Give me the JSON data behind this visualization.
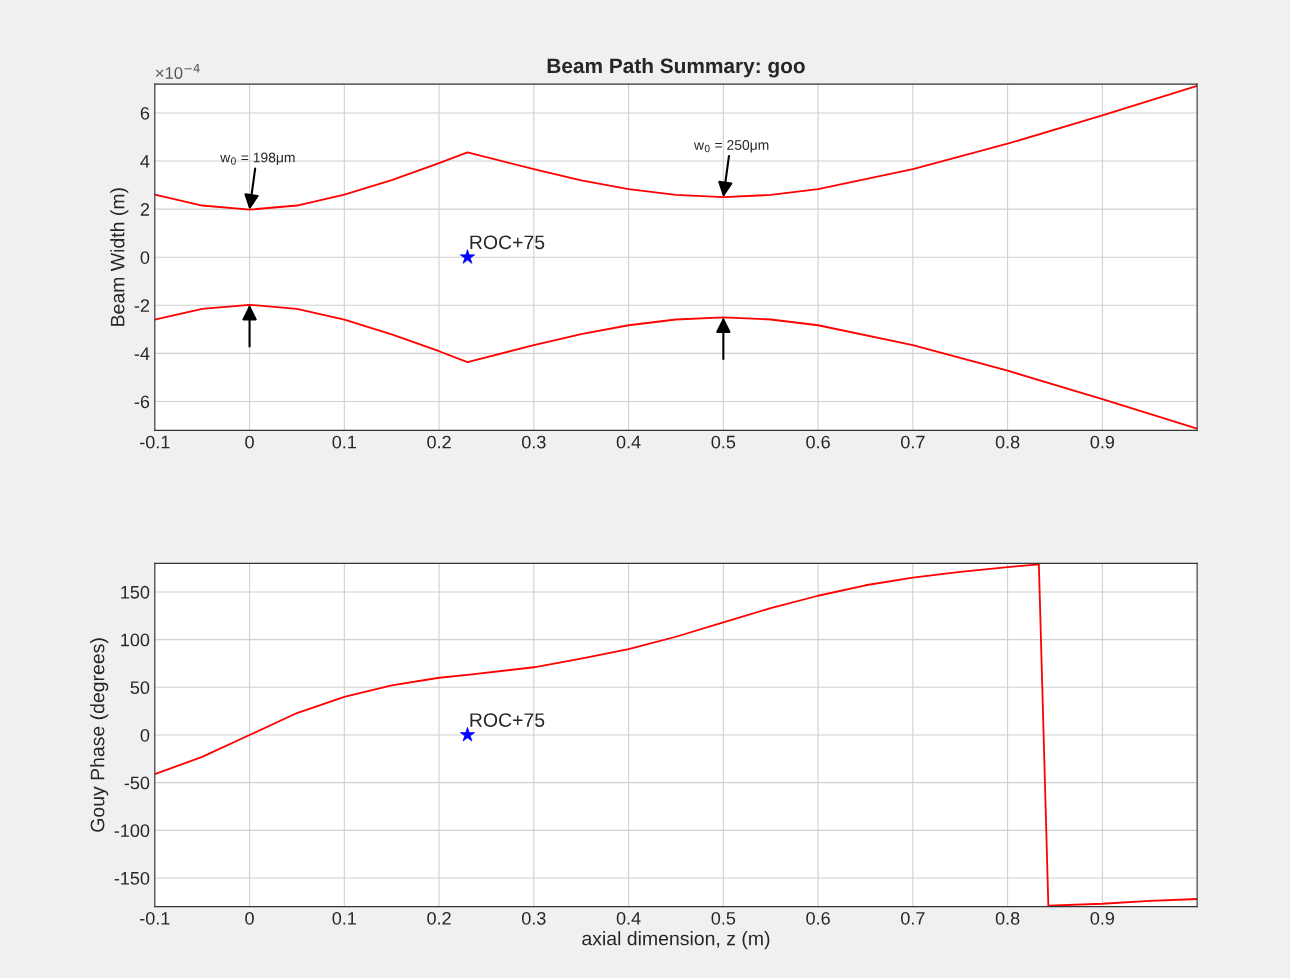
{
  "chart_data": [
    {
      "type": "line",
      "title": "Beam Path Summary: goo",
      "ylabel": "Beam Width (m)",
      "xlim": [
        -0.1,
        1.0
      ],
      "xticks": [
        -0.1,
        0,
        0.1,
        0.2,
        0.3,
        0.4,
        0.5,
        0.6,
        0.7,
        0.8,
        0.9
      ],
      "ylim": [
        -7.2,
        7.2
      ],
      "yticks": [
        -6,
        -4,
        -2,
        0,
        2,
        4,
        6
      ],
      "grid": true,
      "series": [
        {
          "color": "#ff0000",
          "x": [
            -0.1,
            -0.05,
            0,
            0.05,
            0.1,
            0.15,
            0.2,
            0.23,
            0.3,
            0.35,
            0.4,
            0.45,
            0.5,
            0.55,
            0.6,
            0.7,
            0.8,
            0.9,
            1.0
          ],
          "values": [
            2.6,
            2.15,
            1.98,
            2.15,
            2.6,
            3.21,
            3.91,
            4.36,
            3.66,
            3.2,
            2.83,
            2.59,
            2.5,
            2.59,
            2.83,
            3.66,
            4.72,
            5.9,
            7.13
          ]
        },
        {
          "color": "#ff0000",
          "x": [
            -0.1,
            -0.05,
            0,
            0.05,
            0.1,
            0.15,
            0.2,
            0.23,
            0.3,
            0.35,
            0.4,
            0.45,
            0.5,
            0.55,
            0.6,
            0.7,
            0.8,
            0.9,
            1.0
          ],
          "values": [
            -2.6,
            -2.15,
            -1.98,
            -2.15,
            -2.6,
            -3.21,
            -3.91,
            -4.36,
            -3.66,
            -3.2,
            -2.83,
            -2.59,
            -2.5,
            -2.59,
            -2.83,
            -3.66,
            -4.72,
            -5.9,
            -7.13
          ]
        },
        {
          "type": "scatter",
          "color": "#0000ff",
          "marker": "star",
          "x": [
            0.23
          ],
          "values": [
            0
          ]
        }
      ],
      "annotations": [
        "×10$^{−4}$",
        {
          "text": "w$_{0}$ = 198μm",
          "x": 0,
          "y": 1.98
        },
        {
          "text": "w$_{0}$ = 250μm",
          "x": 0.5,
          "y": 2.5
        },
        {
          "text": "ROC+75",
          "x": 0.23,
          "y": 0
        }
      ]
    },
    {
      "type": "line",
      "ylabel": "Gouy Phase (degrees)",
      "xlabel": "axial dimension, z (m)",
      "xlim": [
        -0.1,
        1.0
      ],
      "xticks": [
        -0.1,
        0,
        0.1,
        0.2,
        0.3,
        0.4,
        0.5,
        0.6,
        0.7,
        0.8,
        0.9
      ],
      "ylim": [
        -180,
        180
      ],
      "yticks": [
        -150,
        -100,
        -50,
        0,
        50,
        100,
        150
      ],
      "grid": true,
      "series": [
        {
          "color": "#ff0000",
          "x": [
            -0.1,
            -0.05,
            0,
            0.05,
            0.1,
            0.15,
            0.2,
            0.23,
            0.3,
            0.35,
            0.4,
            0.45,
            0.5,
            0.55,
            0.6,
            0.65,
            0.7,
            0.75,
            0.8,
            0.833,
            0.843,
            0.9,
            0.95,
            1.0
          ],
          "values": [
            -41,
            -23,
            0,
            23,
            40,
            52,
            60,
            63,
            71,
            80,
            90,
            103,
            118,
            133,
            146,
            157,
            165,
            171,
            176,
            179,
            -179,
            -177,
            -174,
            -172
          ]
        },
        {
          "type": "scatter",
          "color": "#0000ff",
          "marker": "star",
          "x": [
            0.23
          ],
          "values": [
            0
          ]
        }
      ],
      "annotations": [
        {
          "text": "ROC+75",
          "x": 0.23,
          "y": 0
        }
      ]
    }
  ]
}
